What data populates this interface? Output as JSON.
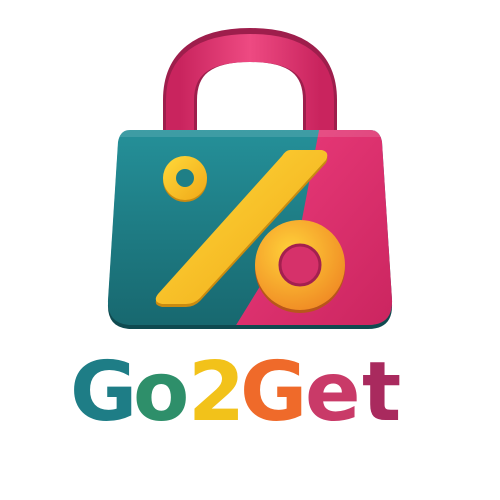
{
  "brand": {
    "name": "Go2Get",
    "letters": [
      "G",
      "o",
      "2",
      "G",
      "e",
      "t"
    ]
  },
  "colors": {
    "background": "#ffffff",
    "teal": "#1f7f86",
    "teal_dark": "#14555c",
    "magenta": "#e0306d",
    "magenta_dark": "#9e1e4c",
    "handle": "#e23a73",
    "yellow": "#f7c51a",
    "orange": "#f08a24",
    "word_g": "#1e7d86",
    "word_o": "#2e8f6a",
    "word_2": "#f2c21a",
    "word_g2": "#ef6a2a",
    "word_e": "#c93a68",
    "word_t": "#a92a5e"
  },
  "icons": {
    "bag": "shopping-bag-icon",
    "percent": "percent-icon"
  }
}
